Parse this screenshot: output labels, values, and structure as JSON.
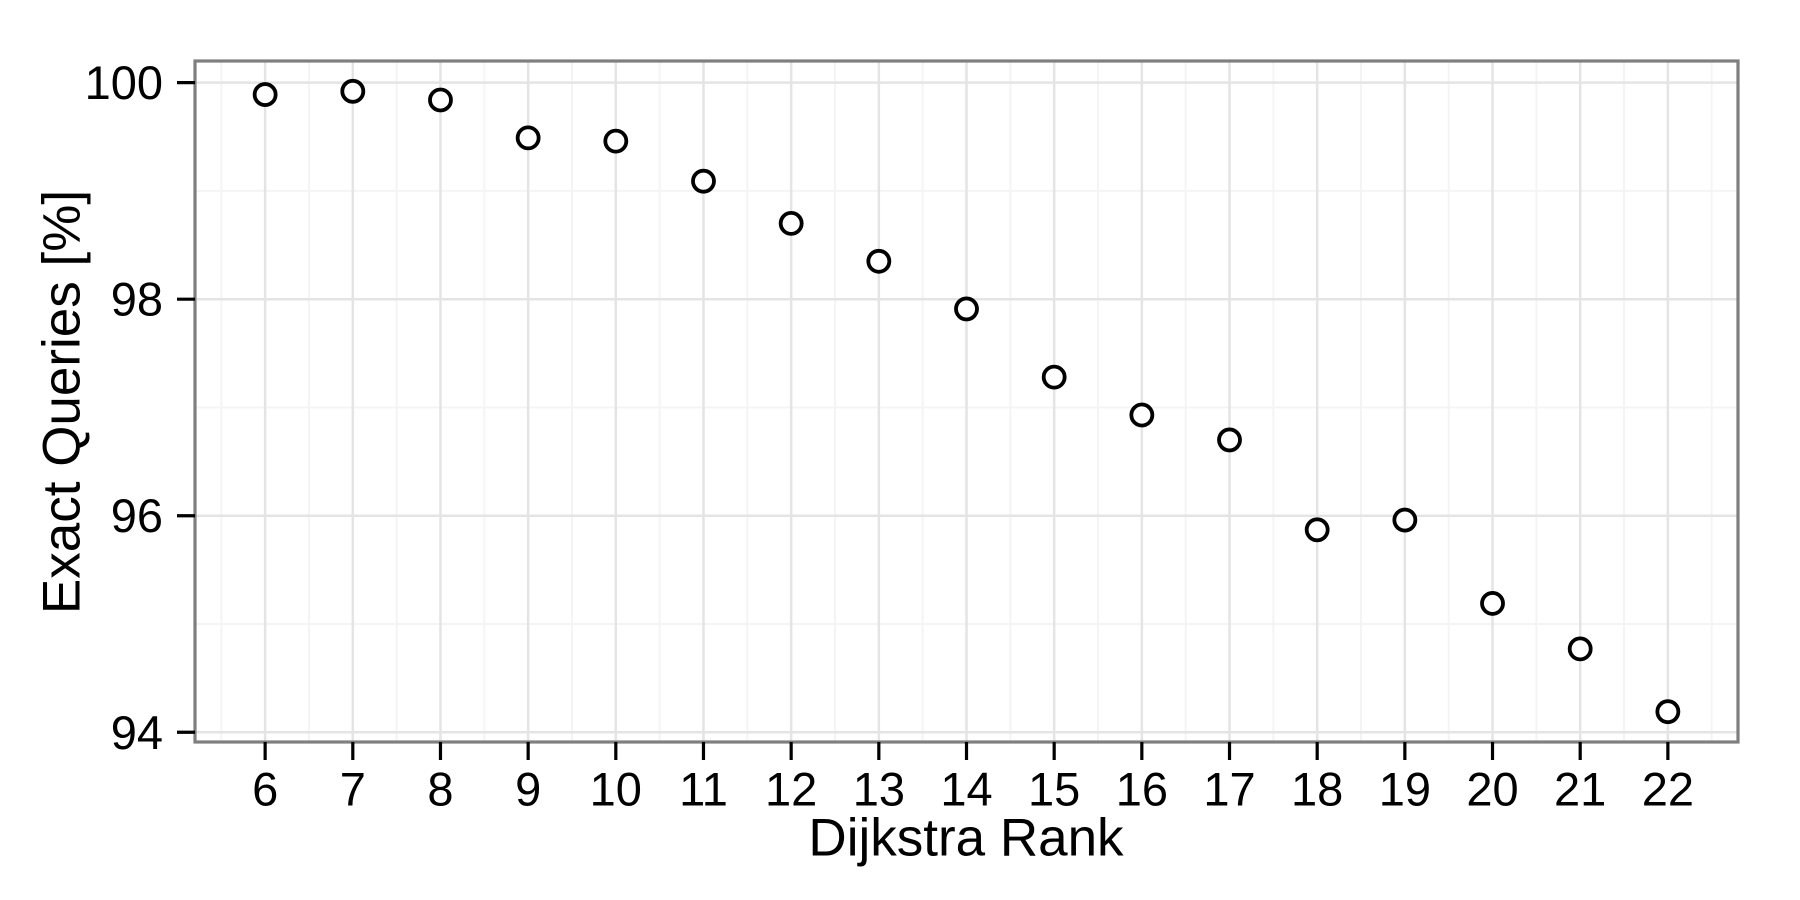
{
  "chart_data": {
    "type": "scatter",
    "title": "",
    "xlabel": "Dijkstra Rank",
    "ylabel": "Exact Queries [%]",
    "x": [
      6,
      7,
      8,
      9,
      10,
      11,
      12,
      13,
      14,
      15,
      16,
      17,
      18,
      19,
      20,
      21,
      22
    ],
    "y": [
      99.89,
      99.92,
      99.84,
      99.49,
      99.46,
      99.09,
      98.7,
      98.35,
      97.91,
      97.28,
      96.93,
      96.7,
      95.87,
      95.96,
      95.19,
      94.77,
      94.19
    ],
    "x_ticks": [
      6,
      7,
      8,
      9,
      10,
      11,
      12,
      13,
      14,
      15,
      16,
      17,
      18,
      19,
      20,
      21,
      22
    ],
    "x_tick_labels": [
      "6",
      "7",
      "8",
      "9",
      "10",
      "11",
      "12",
      "13",
      "14",
      "15",
      "16",
      "17",
      "18",
      "19",
      "20",
      "21",
      "22"
    ],
    "y_ticks": [
      94,
      96,
      98,
      100
    ],
    "y_tick_labels": [
      "94",
      "96",
      "98",
      "100"
    ],
    "y_minor_ticks": [
      95,
      97,
      99
    ],
    "x_minor_step": 0.5,
    "xlim": [
      5.2,
      22.8
    ],
    "ylim": [
      93.91,
      100.2
    ],
    "legend": "none",
    "grid": "major+minor",
    "marker": "open-circle",
    "colors": {
      "point_stroke": "#000000",
      "point_fill": "#ffffff",
      "panel_border": "#7f7f7f",
      "grid_major": "#e4e4e4",
      "grid_minor": "#f4f4f4",
      "tick_mark": "#000000",
      "tick_label": "#000000",
      "background": "#ffffff"
    }
  }
}
